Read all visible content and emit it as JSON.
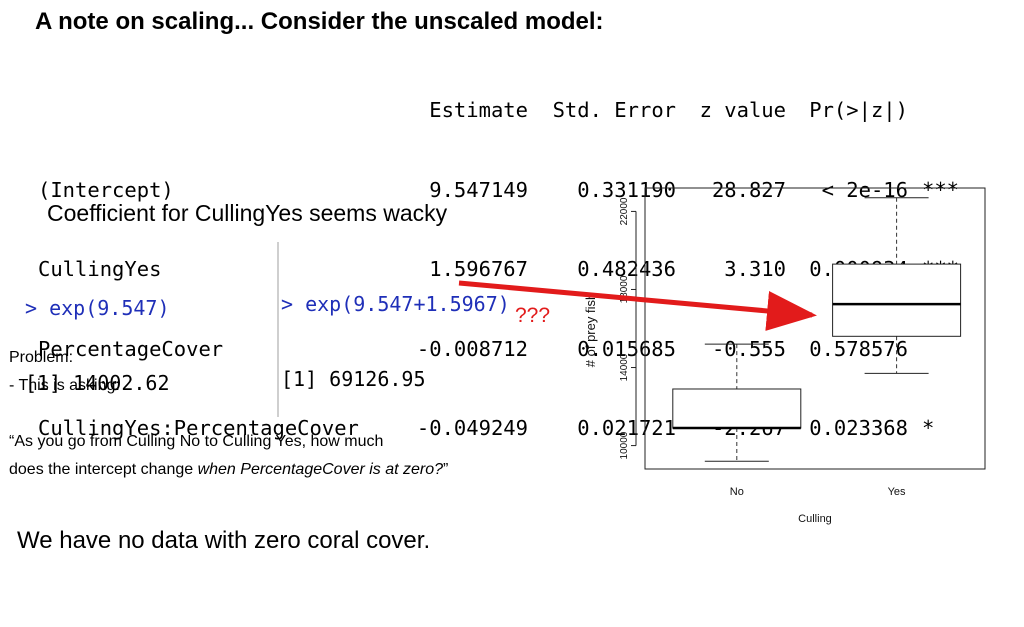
{
  "title": "A note on scaling... Consider the unscaled model:",
  "coef_table": {
    "headers": [
      "",
      "Estimate",
      "Std. Error",
      "z value",
      "Pr(>|z|)",
      ""
    ],
    "rows": [
      {
        "name": "(Intercept)",
        "estimate": "9.547149",
        "std_error": "0.331190",
        "z_value": "28.827",
        "p_value": "< 2e-16",
        "signif": "***"
      },
      {
        "name": "CullingYes",
        "estimate": "1.596767",
        "std_error": "0.482436",
        "z_value": "3.310",
        "p_value": "0.000934",
        "signif": "***"
      },
      {
        "name": "PercentageCover",
        "estimate": "-0.008712",
        "std_error": "0.015685",
        "z_value": "-0.555",
        "p_value": "0.578576",
        "signif": ""
      },
      {
        "name": "CullingYes:PercentageCover",
        "estimate": "-0.049249",
        "std_error": "0.021721",
        "z_value": "-2.267",
        "p_value": "0.023368",
        "signif": "*"
      }
    ]
  },
  "subtitle": "Coefficient for CullingYes seems wacky",
  "console_1": {
    "prompt": "> exp(9.547)",
    "result": "[1] 14002.62"
  },
  "console_2": {
    "prompt": "> exp(9.547+1.5967)",
    "result": "[1] 69126.95"
  },
  "question_marks": "???",
  "problem": {
    "line1": "Problem:",
    "line2": "- This is asking:",
    "quote_part1": "“As you go from Culling No to Culling Yes, how much",
    "quote_part2": "does the intercept change ",
    "quote_italic": "when PercentageCover is at zero?",
    "quote_end": "”"
  },
  "bottom_text": "We have no data with zero coral cover.",
  "colors": {
    "arrow": "#e21b1b",
    "prompt": "#1f2fb8"
  },
  "chart_data": {
    "type": "boxplot",
    "xlabel": "Culling",
    "ylabel": "# of prey fish",
    "categories": [
      "No",
      "Yes"
    ],
    "ylim": [
      8800,
      23200
    ],
    "yticks": [
      10000,
      14000,
      18000,
      22000
    ],
    "boxes": [
      {
        "category": "No",
        "whisker_low": 9200,
        "q1": 10900,
        "median": 10900,
        "q3": 12900,
        "whisker_high": 15200
      },
      {
        "category": "Yes",
        "whisker_low": 13700,
        "q1": 15600,
        "median": 17250,
        "q3": 19300,
        "whisker_high": 22700
      }
    ]
  }
}
